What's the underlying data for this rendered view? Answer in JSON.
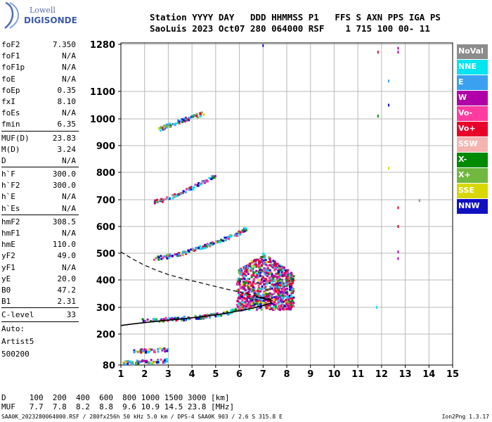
{
  "logo": {
    "line1": "Lowell",
    "line2": "DIGISONDE"
  },
  "header": {
    "line1": "Station YYYY DAY   DDD HHMMSS P1   FFS S AXN PPS IGA PS",
    "line2": "SaoLuis 2023 Oct07 280 064000 RSF    1 715 100 00- 11"
  },
  "params_block1": [
    {
      "label": "foF2",
      "value": "7.350"
    },
    {
      "label": "foF1",
      "value": "N/A"
    },
    {
      "label": "foF1p",
      "value": "N/A"
    },
    {
      "label": "foE",
      "value": "N/A"
    },
    {
      "label": "foEp",
      "value": "0.35"
    },
    {
      "label": "fxI",
      "value": "8.10"
    },
    {
      "label": "foEs",
      "value": "N/A"
    },
    {
      "label": "fmin",
      "value": "6.35"
    }
  ],
  "params_block2": [
    {
      "label": "MUF(D)",
      "value": "23.83"
    },
    {
      "label": "M(D)",
      "value": "3.24"
    },
    {
      "label": "D",
      "value": "N/A"
    }
  ],
  "params_block3": [
    {
      "label": "h`F",
      "value": "300.0"
    },
    {
      "label": "h`F2",
      "value": "300.0"
    },
    {
      "label": "h`E",
      "value": "N/A"
    },
    {
      "label": "h`Es",
      "value": "N/A"
    }
  ],
  "params_block4": [
    {
      "label": "hmF2",
      "value": "308.5"
    },
    {
      "label": "hmF1",
      "value": "N/A"
    },
    {
      "label": "hmE",
      "value": "110.0"
    },
    {
      "label": "yF2",
      "value": "49.0"
    },
    {
      "label": "yF1",
      "value": "N/A"
    },
    {
      "label": "yE",
      "value": "20.0"
    },
    {
      "label": "B0",
      "value": "47.2"
    },
    {
      "label": "B1",
      "value": "2.31"
    }
  ],
  "clevel": {
    "label": "C-level",
    "value": "33"
  },
  "auto": [
    "Auto:",
    "Artist5",
    "500200"
  ],
  "legend": [
    {
      "label": "NoVal",
      "color": "#8c8c8c"
    },
    {
      "label": "NNE",
      "color": "#00e5f0"
    },
    {
      "label": "E",
      "color": "#3aa0f0"
    },
    {
      "label": "W",
      "color": "#b000a8"
    },
    {
      "label": "Vo-",
      "color": "#ff3ca0"
    },
    {
      "label": "Vo+",
      "color": "#e8002a"
    },
    {
      "label": "SSW",
      "color": "#f4b4b0"
    },
    {
      "label": "X-",
      "color": "#008a00"
    },
    {
      "label": "X+",
      "color": "#70b840"
    },
    {
      "label": "SSE",
      "color": "#d8d800"
    },
    {
      "label": "NNW",
      "color": "#1010c0"
    }
  ],
  "dmuf": {
    "d_line": "D     100  200  400  600  800 1000 1500 3000 [km]",
    "muf_line": "MUF   7.7  7.8  8.2  8.8  9.6 10.9 14.5 23.8 [MHz]"
  },
  "footer": {
    "left": "SAA0K_2023280064000.RSF / 280fx256h 50 kHz 5.0 km / DPS-4 SAA0K 903 / 2.6 S 315.8 E",
    "right": "Ion2Png 1.3.17"
  },
  "chart_data": {
    "type": "scatter",
    "xlim": [
      1,
      15
    ],
    "ylim": [
      80,
      1300
    ],
    "x_ticks": [
      1,
      2,
      3,
      4,
      5,
      6,
      7,
      8,
      9,
      10,
      11,
      12,
      13,
      14,
      15
    ],
    "y_ticks": [
      80,
      200,
      300,
      400,
      500,
      600,
      700,
      800,
      900,
      1000,
      1100,
      1280
    ],
    "grid": true,
    "trace_bands": [
      {
        "name": "F-trace",
        "x": [
          1.8,
          2.5,
          3.0,
          3.5,
          4.0,
          4.5,
          5.0,
          5.5,
          6.0,
          6.3,
          6.6,
          6.9,
          7.2
        ],
        "y": [
          250,
          252,
          254,
          257,
          260,
          265,
          272,
          280,
          292,
          300,
          312,
          325,
          340
        ]
      },
      {
        "name": "2F-trace",
        "x": [
          2.4,
          3.0,
          3.5,
          4.0,
          4.5,
          5.0,
          5.5,
          6.0,
          6.3
        ],
        "y": [
          478,
          488,
          498,
          510,
          525,
          540,
          555,
          575,
          590
        ]
      },
      {
        "name": "3F-trace",
        "x": [
          2.4,
          3.0,
          3.5,
          4.0,
          4.5,
          5.0
        ],
        "y": [
          690,
          705,
          722,
          742,
          765,
          790
        ]
      },
      {
        "name": "4F-trace",
        "x": [
          2.6,
          3.0,
          3.5,
          4.0,
          4.5
        ],
        "y": [
          960,
          975,
          990,
          1005,
          1020
        ]
      },
      {
        "name": "low-trace",
        "x": [
          1.1,
          1.5,
          2.0,
          2.5,
          3.0
        ],
        "y": [
          87,
          90,
          92,
          94,
          97
        ]
      },
      {
        "name": "low-trace-2",
        "x": [
          1.5,
          2.0,
          2.5,
          3.0
        ],
        "y": [
          132,
          135,
          137,
          140
        ]
      }
    ],
    "spread_cluster": {
      "x": [
        5.9,
        8.3
      ],
      "y": [
        290,
        500
      ]
    },
    "profile_solid": {
      "x": [
        1.0,
        1.5,
        2.0,
        2.5,
        3.0,
        3.5,
        4.0,
        4.5,
        5.0,
        5.5,
        6.0,
        6.5,
        7.0,
        7.35,
        7.3,
        7.0,
        6.7
      ],
      "y": [
        232,
        238,
        243,
        248,
        252,
        256,
        261,
        266,
        272,
        279,
        287,
        296,
        307,
        316,
        326,
        333,
        338
      ]
    },
    "profile_dashed": {
      "x": [
        1.0,
        1.5,
        2.0,
        2.5,
        3.0,
        3.5,
        4.0,
        4.5,
        5.0,
        5.5,
        6.0,
        6.5,
        7.0,
        7.35
      ],
      "y": [
        505,
        478,
        455,
        436,
        420,
        408,
        397,
        387,
        376,
        366,
        356,
        346,
        336,
        330
      ]
    },
    "isolated_points": [
      {
        "x": 12.7,
        "y": 1265,
        "color": "#b000a8"
      },
      {
        "x": 12.7,
        "y": 1250,
        "color": "#b000a8"
      },
      {
        "x": 12.7,
        "y": 670,
        "color": "#e8002a"
      },
      {
        "x": 12.7,
        "y": 600,
        "color": "#e8002a"
      },
      {
        "x": 12.7,
        "y": 505,
        "color": "#b000a8"
      },
      {
        "x": 12.7,
        "y": 480,
        "color": "#b000a8"
      },
      {
        "x": 12.3,
        "y": 1140,
        "color": "#3aa0f0"
      },
      {
        "x": 12.3,
        "y": 1050,
        "color": "#1010c0"
      },
      {
        "x": 11.85,
        "y": 1010,
        "color": "#008a00"
      },
      {
        "x": 11.85,
        "y": 1250,
        "color": "#e8002a"
      },
      {
        "x": 12.3,
        "y": 815,
        "color": "#d8d800"
      },
      {
        "x": 13.6,
        "y": 697,
        "color": "#8c8c8c"
      },
      {
        "x": 11.8,
        "y": 300,
        "color": "#00e5f0"
      },
      {
        "x": 7.0,
        "y": 1275,
        "color": "#1010c0"
      }
    ]
  }
}
